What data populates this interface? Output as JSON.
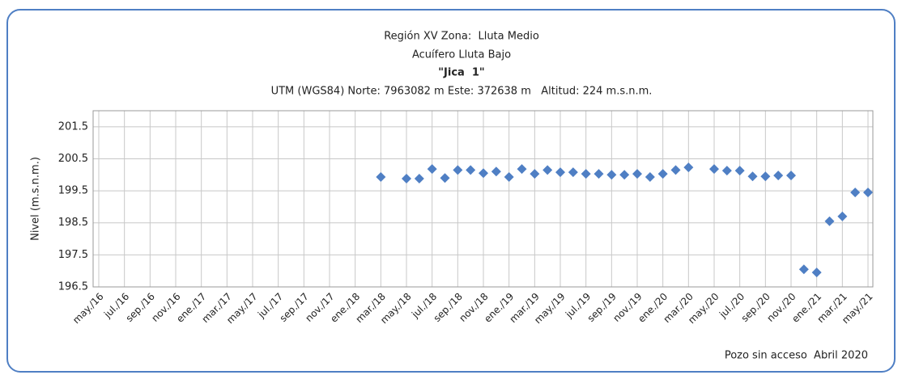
{
  "chart_data": {
    "type": "scatter",
    "title": "Región XV Zona:  Lluta Medio",
    "subtitle": "Acuífero Lluta Bajo",
    "well_name": "\"Jica  1\"",
    "location": "UTM (WGS84) Norte: 7963082 m Este: 372638 m   Altitud: 224 m.s.n.m.",
    "y_label": "Nivel (m.s.n.m.)",
    "annotation": "Pozo sin acceso  Abril 2020",
    "categories": [
      "may./16",
      null,
      "jul./16",
      null,
      "sep./16",
      null,
      "nov./16",
      null,
      "ene./17",
      null,
      "mar./17",
      null,
      "may./17",
      null,
      "jul./17",
      null,
      "sep./17",
      null,
      "nov./17",
      null,
      "ene./18",
      null,
      "mar./18",
      null,
      "may./18",
      null,
      "jul./18",
      null,
      "sep./18",
      null,
      "nov./18",
      null,
      "ene./19",
      null,
      "mar./19",
      null,
      "may./19",
      null,
      "jul./19",
      null,
      "sep./19",
      null,
      "nov./19",
      null,
      "ene./20",
      null,
      "mar./20",
      null,
      "may./20",
      null,
      "jul./20",
      null,
      "sep./20",
      null,
      "nov./20",
      null,
      "ene./21",
      null,
      "mar./21",
      null,
      "may./21"
    ],
    "series": [
      {
        "name": "Nivel",
        "color": "#4f7fc4",
        "values": [
          null,
          null,
          null,
          null,
          null,
          null,
          null,
          null,
          null,
          null,
          null,
          null,
          null,
          null,
          null,
          null,
          null,
          null,
          null,
          null,
          null,
          null,
          199.93,
          null,
          199.88,
          199.88,
          200.18,
          199.9,
          200.15,
          200.15,
          200.05,
          200.1,
          199.93,
          200.18,
          200.03,
          200.15,
          200.08,
          200.08,
          200.03,
          200.03,
          200.0,
          200.0,
          200.03,
          199.93,
          200.03,
          200.15,
          200.23,
          null,
          200.18,
          200.13,
          200.13,
          199.95,
          199.95,
          199.98,
          199.98,
          197.05,
          196.95,
          198.55,
          198.7,
          199.45,
          199.45
        ]
      }
    ],
    "ylim": [
      196.5,
      202.0
    ],
    "yticks": [
      196.5,
      197.5,
      198.5,
      199.5,
      200.5,
      201.5
    ],
    "grid": true
  }
}
